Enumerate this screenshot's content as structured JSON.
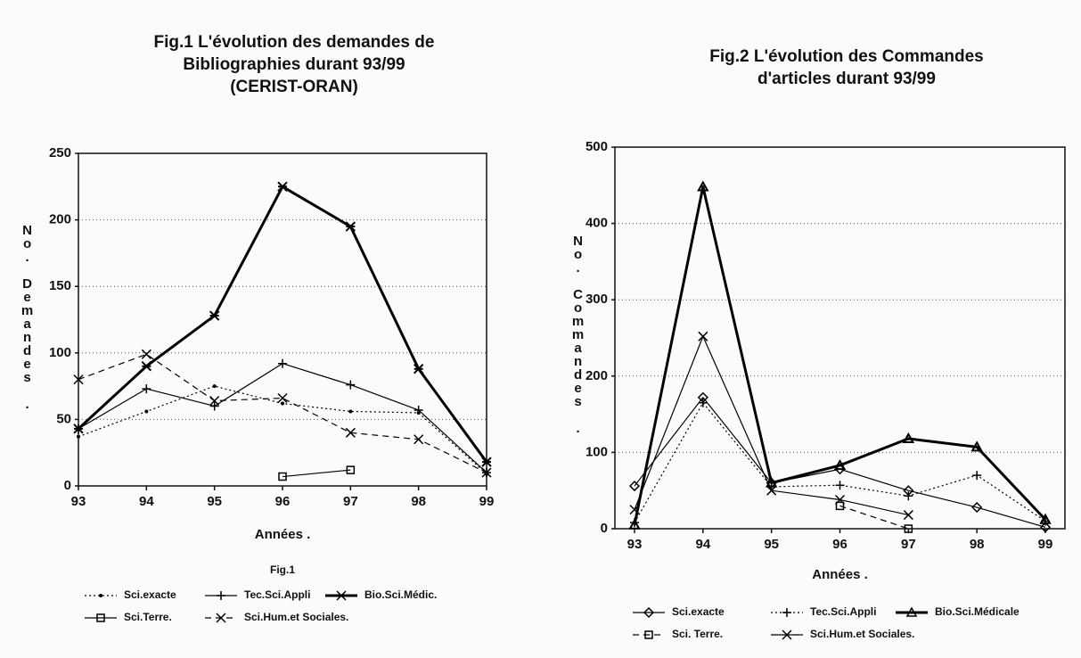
{
  "chart_data": [
    {
      "type": "line",
      "title": [
        "Fig.1 L'évolution des demandes de",
        "Bibliographies durant 93/99",
        "(CERIST-ORAN)"
      ],
      "y_label": "No. Demandes .",
      "x_label": "Années .",
      "caption": "Fig.1",
      "categories": [
        "93",
        "94",
        "95",
        "96",
        "97",
        "98",
        "99"
      ],
      "ylim": [
        0,
        250
      ],
      "yticks": [
        0,
        50,
        100,
        150,
        200,
        250
      ],
      "grid": true,
      "series": [
        {
          "name": "Sci.exacte",
          "color": "#000000",
          "line": "dotted",
          "marker": "dot",
          "values": [
            37,
            56,
            75,
            62,
            56,
            55,
            9
          ]
        },
        {
          "name": "Tec.Sci.Appli",
          "color": "#000000",
          "line": "thin",
          "marker": "plus",
          "values": [
            43,
            73,
            60,
            92,
            76,
            57,
            10
          ]
        },
        {
          "name": "Bio.Sci.Médic.",
          "color": "#000000",
          "line": "thick",
          "marker": "star",
          "values": [
            43,
            90,
            128,
            225,
            195,
            88,
            18
          ]
        },
        {
          "name": "Sci.Terre.",
          "color": "#000000",
          "line": "thin",
          "marker": "square",
          "values": [
            null,
            null,
            null,
            7,
            12,
            null,
            null
          ]
        },
        {
          "name": "Sci.Hum.et Sociales.",
          "color": "#000000",
          "line": "dashed",
          "marker": "x",
          "values": [
            80,
            99,
            64,
            66,
            40,
            35,
            10
          ]
        }
      ]
    },
    {
      "type": "line",
      "title": [
        "Fig.2 L'évolution des Commandes",
        "d'articles durant 93/99"
      ],
      "y_label": "No. Commandes .",
      "x_label": "Années .",
      "categories": [
        "93",
        "94",
        "95",
        "96",
        "97",
        "98",
        "99"
      ],
      "ylim": [
        0,
        500
      ],
      "yticks": [
        0,
        100,
        200,
        300,
        400,
        500
      ],
      "grid": true,
      "series": [
        {
          "name": "Sci.exacte",
          "color": "#000000",
          "line": "thin",
          "marker": "diamond",
          "values": [
            56,
            172,
            60,
            78,
            50,
            28,
            2
          ]
        },
        {
          "name": "Tec.Sci.Appli",
          "color": "#000000",
          "line": "dotted",
          "marker": "plus",
          "values": [
            8,
            165,
            55,
            57,
            43,
            70,
            10
          ]
        },
        {
          "name": "Bio.Sci.Médicale",
          "color": "#000000",
          "line": "thick",
          "marker": "triangle",
          "values": [
            5,
            448,
            60,
            83,
            118,
            107,
            12
          ]
        },
        {
          "name": "Sci. Terre.",
          "color": "#000000",
          "line": "dashed",
          "marker": "square",
          "values": [
            null,
            null,
            null,
            30,
            0,
            null,
            null
          ]
        },
        {
          "name": "Sci.Hum.et Sociales.",
          "color": "#000000",
          "line": "thin",
          "marker": "x",
          "values": [
            25,
            252,
            50,
            38,
            18,
            null,
            null
          ]
        }
      ]
    }
  ]
}
